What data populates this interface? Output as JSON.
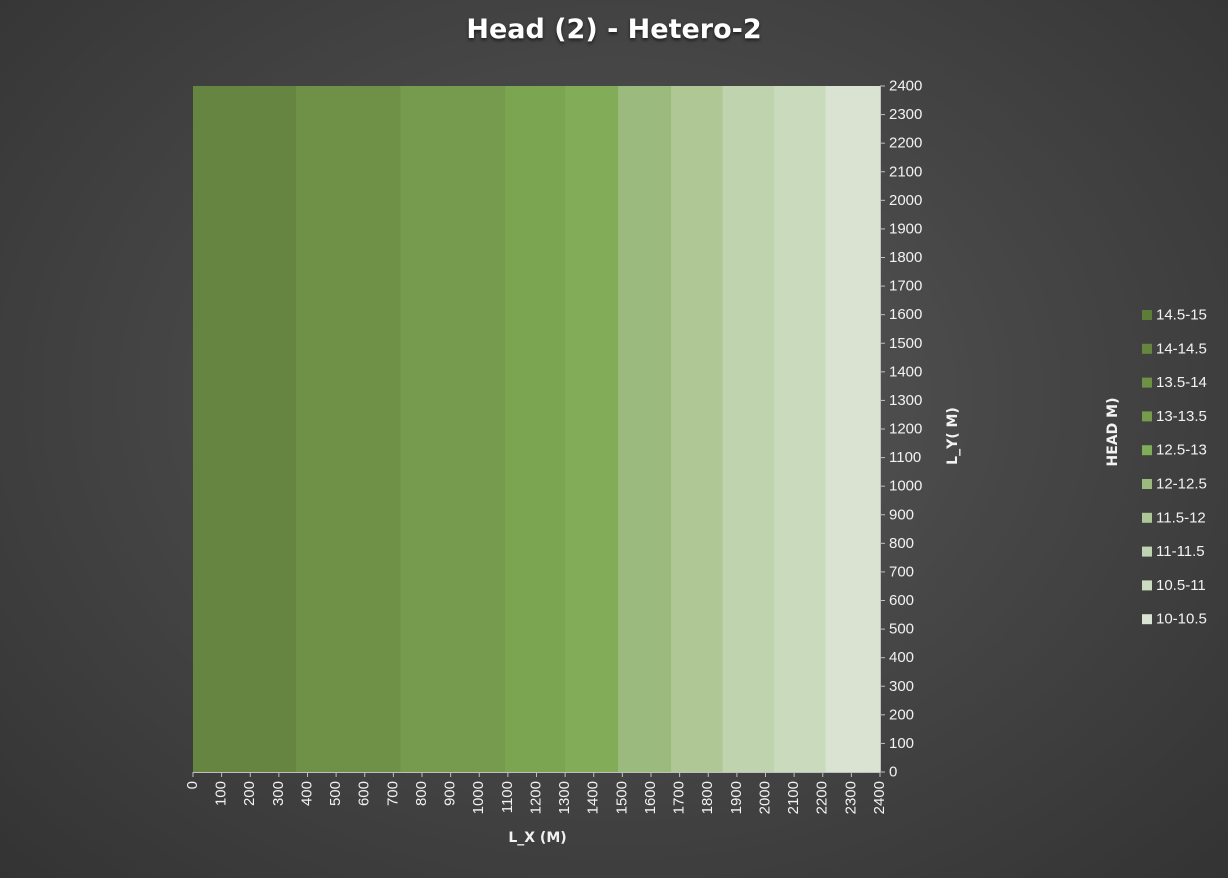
{
  "chart_data": {
    "type": "heatmap",
    "title": "Head (2) - Hetero-2",
    "xlabel": "L_X (M)",
    "ylabel": "L_Y( M)",
    "legend_title": "HEAD M)",
    "xlim": [
      0,
      2400
    ],
    "ylim": [
      0,
      2400
    ],
    "x_ticks": [
      "0",
      "100",
      "200",
      "300",
      "400",
      "500",
      "600",
      "700",
      "800",
      "900",
      "1000",
      "1100",
      "1200",
      "1300",
      "1400",
      "1500",
      "1600",
      "1700",
      "1800",
      "1900",
      "2000",
      "2100",
      "2200",
      "2300",
      "2400"
    ],
    "y_ticks": [
      "0",
      "100",
      "200",
      "300",
      "400",
      "500",
      "600",
      "700",
      "800",
      "900",
      "1000",
      "1100",
      "1200",
      "1300",
      "1400",
      "1500",
      "1600",
      "1700",
      "1800",
      "1900",
      "2000",
      "2100",
      "2200",
      "2300",
      "2400"
    ],
    "legend_position": "right",
    "legend": [
      {
        "label": "14.5-15",
        "color": "#5e7c39"
      },
      {
        "label": "14-14.5",
        "color": "#66863f"
      },
      {
        "label": "13.5-14",
        "color": "#6e9146"
      },
      {
        "label": "13-13.5",
        "color": "#779b4c"
      },
      {
        "label": "12.5-13",
        "color": "#80ad58"
      },
      {
        "label": "12-12.5",
        "color": "#9bba7d"
      },
      {
        "label": "11.5-12",
        "color": "#adc896"
      },
      {
        "label": "11-11.5",
        "color": "#bfd4b0"
      },
      {
        "label": "10.5-11",
        "color": "#ccdcc0"
      },
      {
        "label": "10-10.5",
        "color": "#dbe4d2"
      }
    ],
    "bands": [
      {
        "x_start": 0,
        "x_end": 360,
        "color": "#668540"
      },
      {
        "x_start": 360,
        "x_end": 725,
        "color": "#6e9147"
      },
      {
        "x_start": 725,
        "x_end": 1090,
        "color": "#769b4e"
      },
      {
        "x_start": 1090,
        "x_end": 1300,
        "color": "#7ba551"
      },
      {
        "x_start": 1300,
        "x_end": 1485,
        "color": "#82ac57"
      },
      {
        "x_start": 1485,
        "x_end": 1670,
        "color": "#9bba7e"
      },
      {
        "x_start": 1670,
        "x_end": 1850,
        "color": "#aec795"
      },
      {
        "x_start": 1850,
        "x_end": 2030,
        "color": "#bfd3af"
      },
      {
        "x_start": 2030,
        "x_end": 2210,
        "color": "#cadabd"
      },
      {
        "x_start": 2210,
        "x_end": 2400,
        "color": "#dae3d1"
      }
    ]
  }
}
